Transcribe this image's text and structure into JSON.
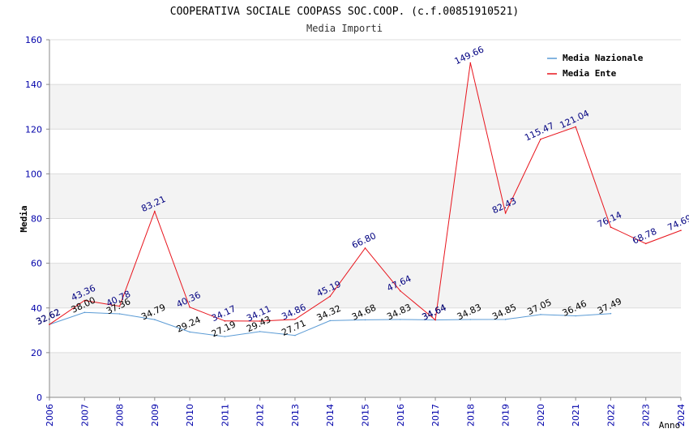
{
  "chart_data": {
    "type": "line",
    "title": "COOPERATIVA SOCIALE COOPASS SOC.COOP. (c.f.00851910521)",
    "subtitle": "Media Importi",
    "xlabel": "Anno",
    "ylabel": "Media",
    "ylim": [
      0,
      160
    ],
    "yticks": [
      "0",
      "20",
      "40",
      "60",
      "80",
      "100",
      "120",
      "140",
      "160"
    ],
    "x": [
      "2006",
      "2007",
      "2008",
      "2009",
      "2010",
      "2011",
      "2012",
      "2013",
      "2014",
      "2015",
      "2016",
      "2017",
      "2018",
      "2019",
      "2020",
      "2021",
      "2022",
      "2023",
      "2024"
    ],
    "grid": true,
    "legend_position": "top-right",
    "series": [
      {
        "name": "Media Nazionale",
        "color": "#5b9bd5",
        "label_color": "#000000",
        "values": [
          32.62,
          38.0,
          37.36,
          34.79,
          29.24,
          27.19,
          29.43,
          27.71,
          34.32,
          34.68,
          34.83,
          34.64,
          34.83,
          34.85,
          37.05,
          36.46,
          37.49,
          null,
          null
        ],
        "labels": [
          "32.62",
          "38.00",
          "37.36",
          "34.79",
          "29.24",
          "27.19",
          "29.43",
          "27.71",
          "34.32",
          "34.68",
          "34.83",
          "34.64",
          "34.83",
          "34.85",
          "37.05",
          "36.46",
          "37.49",
          "",
          ""
        ]
      },
      {
        "name": "Media Ente",
        "color": "#e8141c",
        "label_color": "#000080",
        "values": [
          32.62,
          43.36,
          40.78,
          83.21,
          40.36,
          34.17,
          34.11,
          34.86,
          45.19,
          66.8,
          47.64,
          34.64,
          149.66,
          82.43,
          115.47,
          121.04,
          76.14,
          68.78,
          74.69
        ],
        "labels": [
          "32.62",
          "43.36",
          "40.78",
          "83.21",
          "40.36",
          "34.17",
          "34.11",
          "34.86",
          "45.19",
          "66.80",
          "47.64",
          "34.64",
          "149.66",
          "82.43",
          "115.47",
          "121.04",
          "76.14",
          "68.78",
          "74.69"
        ]
      }
    ]
  }
}
